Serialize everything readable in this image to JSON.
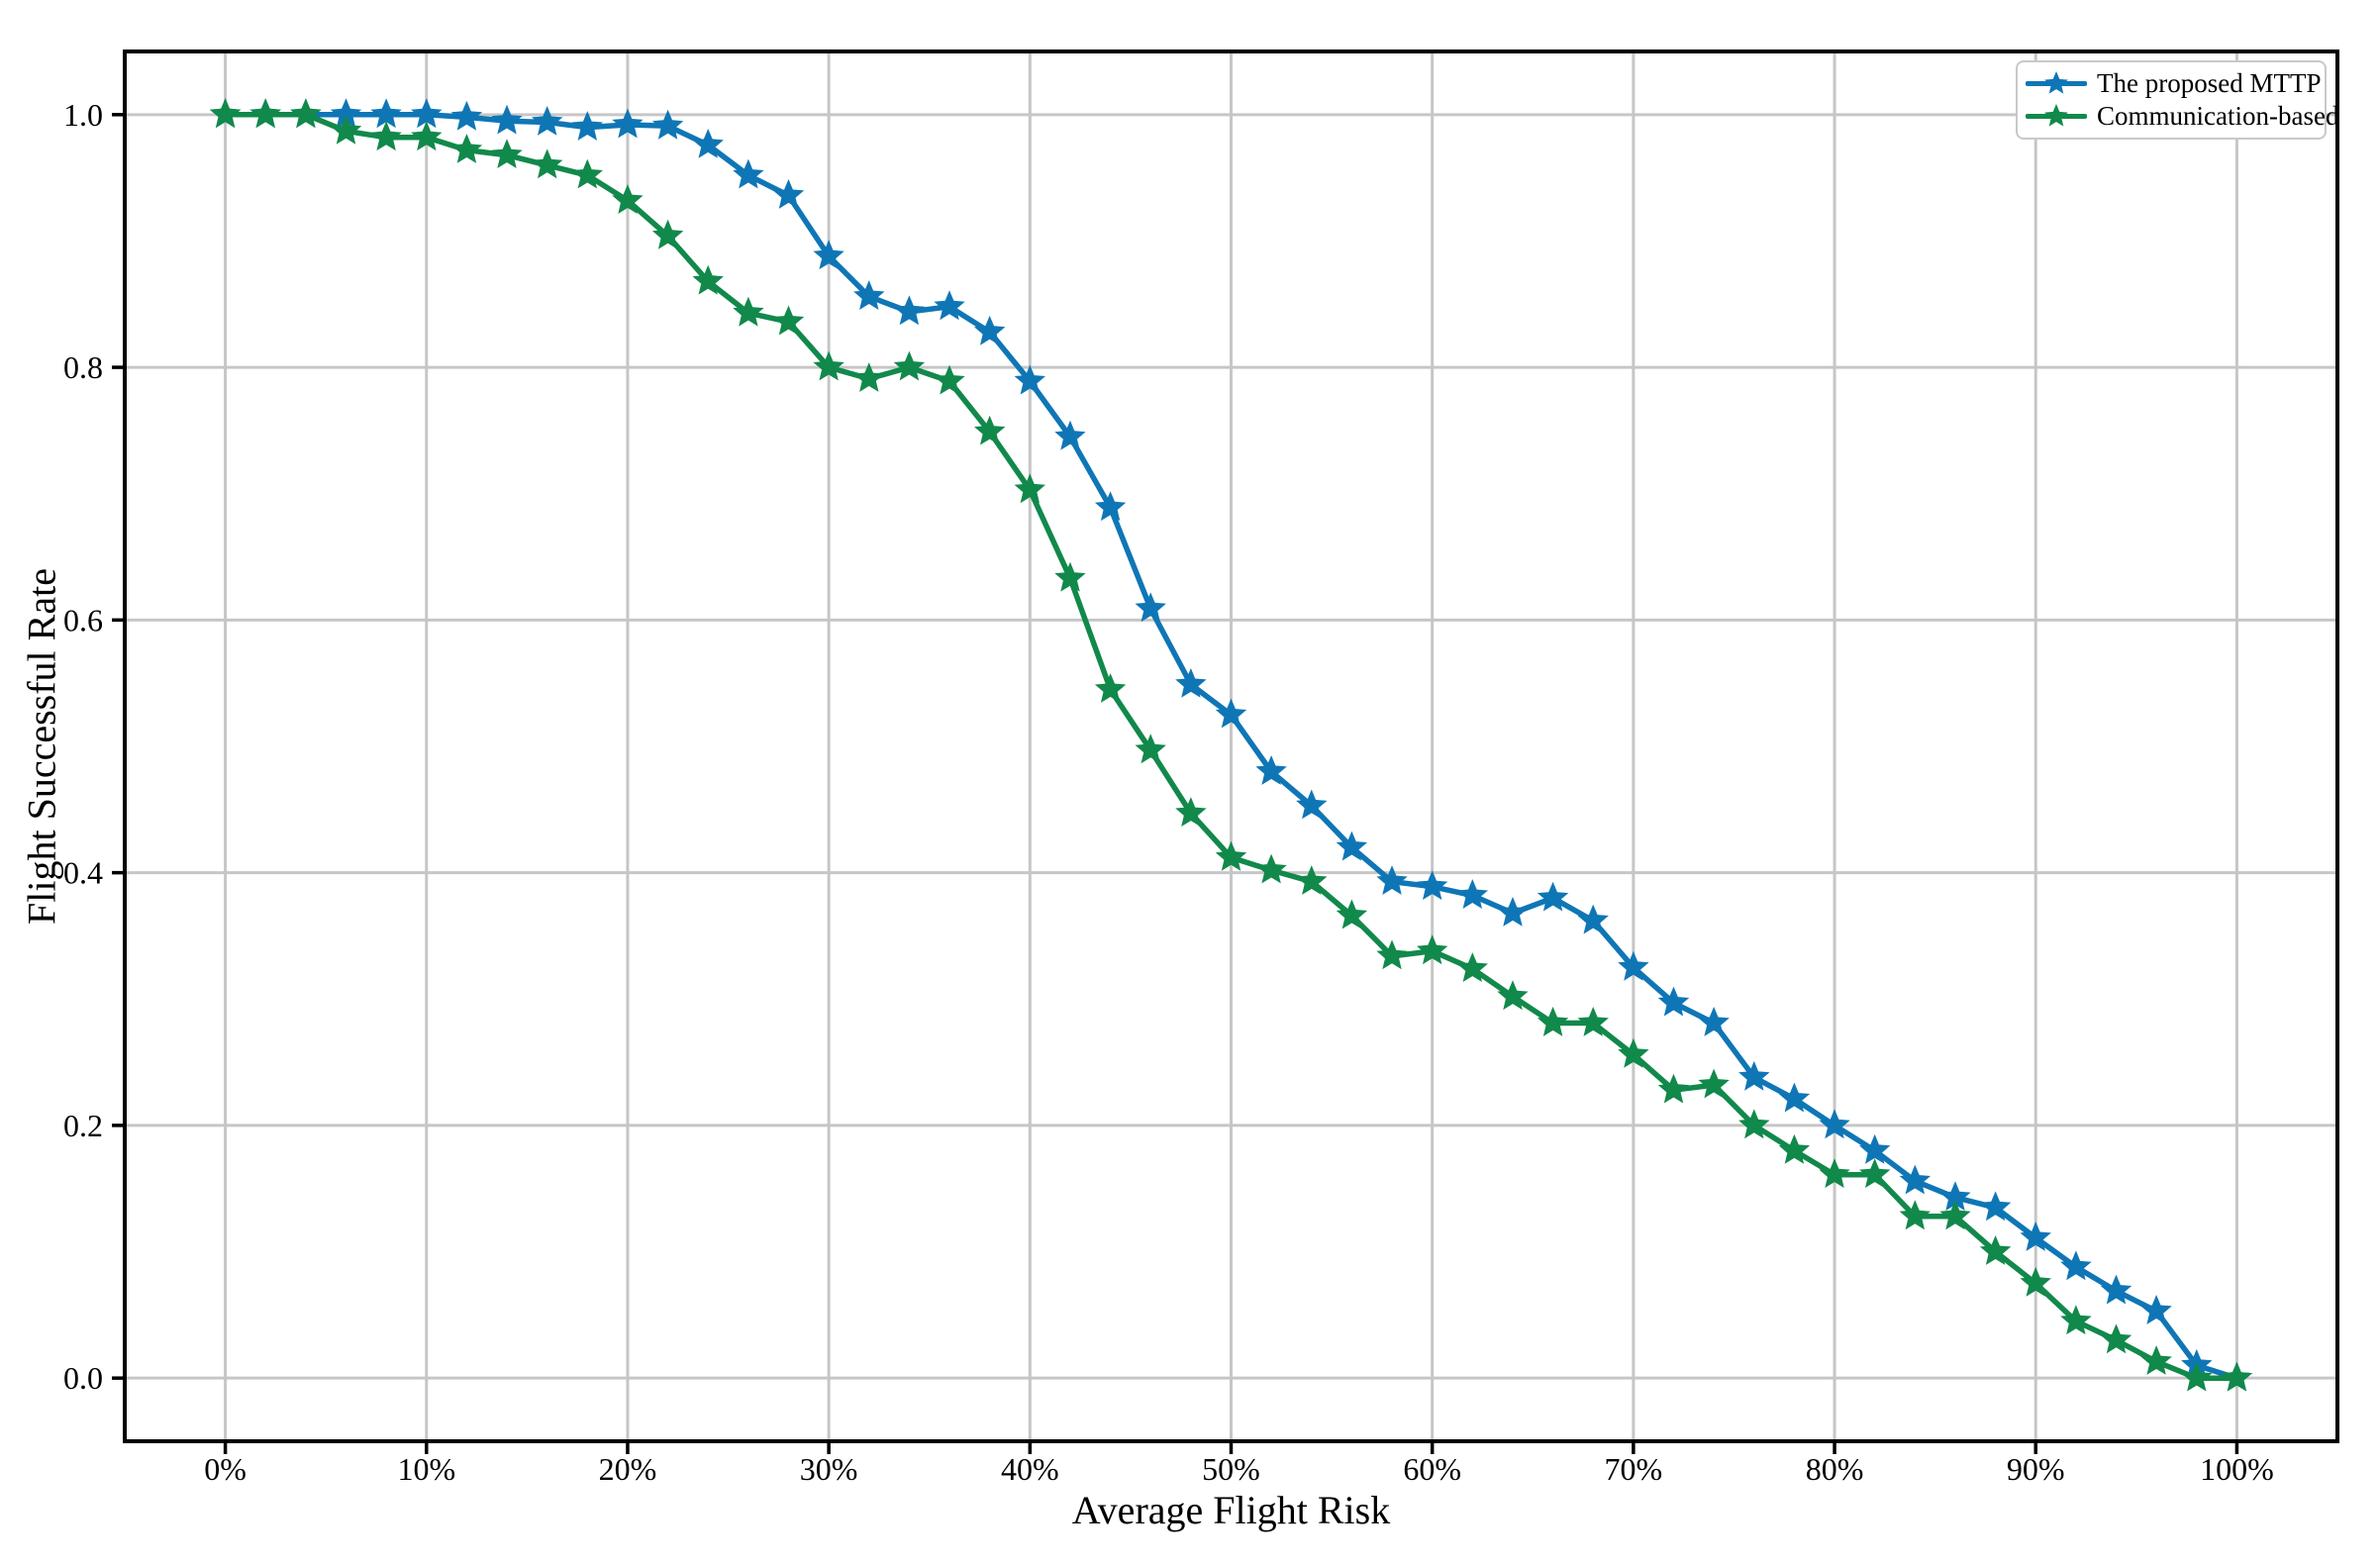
{
  "chart_data": {
    "type": "line",
    "title": "",
    "xlabel": "Average Flight Risk",
    "ylabel": "Flight Successful Rate",
    "xlim": [
      -5,
      105
    ],
    "ylim": [
      -0.05,
      1.05
    ],
    "grid": true,
    "grid_color": "#c6c6c6",
    "spine_color": "#000000",
    "legend_position": "upper right",
    "xticks": [
      {
        "v": 0,
        "label": "0%"
      },
      {
        "v": 10,
        "label": "10%"
      },
      {
        "v": 20,
        "label": "20%"
      },
      {
        "v": 30,
        "label": "30%"
      },
      {
        "v": 40,
        "label": "40%"
      },
      {
        "v": 50,
        "label": "50%"
      },
      {
        "v": 60,
        "label": "60%"
      },
      {
        "v": 70,
        "label": "70%"
      },
      {
        "v": 80,
        "label": "80%"
      },
      {
        "v": 90,
        "label": "90%"
      },
      {
        "v": 100,
        "label": "100%"
      }
    ],
    "yticks": [
      {
        "v": 0.0,
        "label": "0.0"
      },
      {
        "v": 0.2,
        "label": "0.2"
      },
      {
        "v": 0.4,
        "label": "0.4"
      },
      {
        "v": 0.6,
        "label": "0.6"
      },
      {
        "v": 0.8,
        "label": "0.8"
      },
      {
        "v": 1.0,
        "label": "1.0"
      }
    ],
    "x": [
      0,
      2,
      4,
      6,
      8,
      10,
      12,
      14,
      16,
      18,
      20,
      22,
      24,
      26,
      28,
      30,
      32,
      34,
      36,
      38,
      40,
      42,
      44,
      46,
      48,
      50,
      52,
      54,
      56,
      58,
      60,
      62,
      64,
      66,
      68,
      70,
      72,
      74,
      76,
      78,
      80,
      82,
      84,
      86,
      88,
      90,
      92,
      94,
      96,
      98,
      100
    ],
    "series": [
      {
        "name": "The proposed MTTP",
        "color": "#0f76b6",
        "marker": "star",
        "values": [
          1.0,
          1.0,
          1.0,
          1.0,
          1.0,
          1.0,
          0.998,
          0.995,
          0.994,
          0.99,
          0.992,
          0.991,
          0.976,
          0.952,
          0.936,
          0.888,
          0.856,
          0.844,
          0.848,
          0.828,
          0.789,
          0.745,
          0.689,
          0.609,
          0.549,
          0.525,
          0.48,
          0.453,
          0.42,
          0.393,
          0.389,
          0.382,
          0.368,
          0.38,
          0.362,
          0.325,
          0.297,
          0.281,
          0.238,
          0.221,
          0.2,
          0.18,
          0.156,
          0.143,
          0.135,
          0.111,
          0.088,
          0.069,
          0.053,
          0.01,
          0.0
        ]
      },
      {
        "name": "Communication-based",
        "color": "#11894b",
        "marker": "star",
        "values": [
          1.0,
          1.0,
          1.0,
          0.987,
          0.982,
          0.982,
          0.972,
          0.968,
          0.96,
          0.952,
          0.932,
          0.904,
          0.868,
          0.843,
          0.836,
          0.8,
          0.791,
          0.8,
          0.789,
          0.749,
          0.703,
          0.633,
          0.545,
          0.497,
          0.447,
          0.412,
          0.402,
          0.393,
          0.366,
          0.334,
          0.338,
          0.324,
          0.302,
          0.281,
          0.281,
          0.256,
          0.228,
          0.232,
          0.2,
          0.18,
          0.161,
          0.161,
          0.128,
          0.128,
          0.1,
          0.075,
          0.045,
          0.03,
          0.013,
          0.0,
          0.0
        ]
      }
    ]
  }
}
